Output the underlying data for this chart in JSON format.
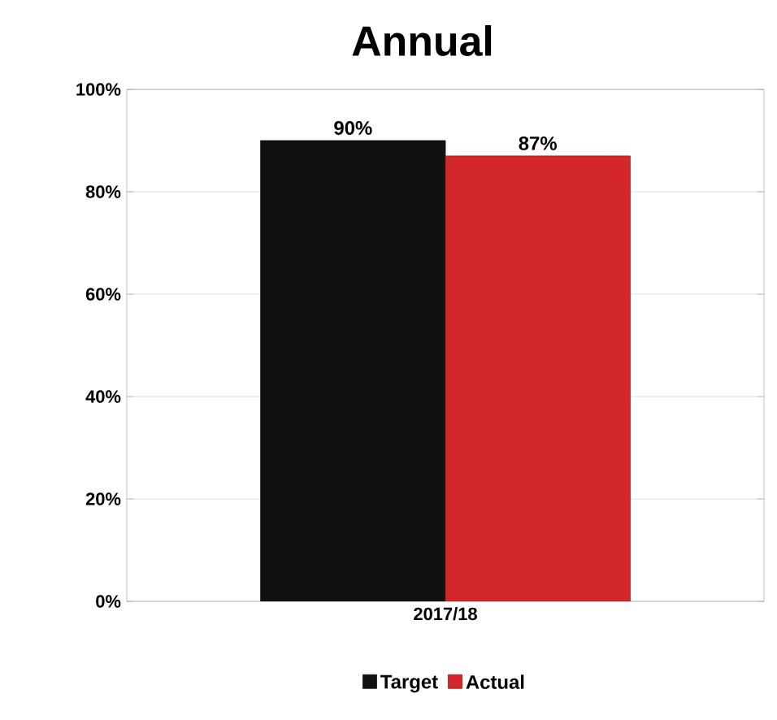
{
  "chart_data": {
    "type": "bar",
    "title": "Annual",
    "categories": [
      "2017/18"
    ],
    "series": [
      {
        "name": "Target",
        "color": "#111111",
        "values": [
          90
        ],
        "value_labels": [
          "90%"
        ]
      },
      {
        "name": "Actual",
        "color": "#d3272c",
        "values": [
          87
        ],
        "value_labels": [
          "87%"
        ]
      }
    ],
    "ylim": [
      0,
      100
    ],
    "yticks": [
      {
        "value": 0,
        "label": "0%"
      },
      {
        "value": 20,
        "label": "20%"
      },
      {
        "value": 40,
        "label": "40%"
      },
      {
        "value": 60,
        "label": "60%"
      },
      {
        "value": 80,
        "label": "80%"
      },
      {
        "value": 100,
        "label": "100%"
      }
    ],
    "grid": "y",
    "legend": "bottom"
  }
}
